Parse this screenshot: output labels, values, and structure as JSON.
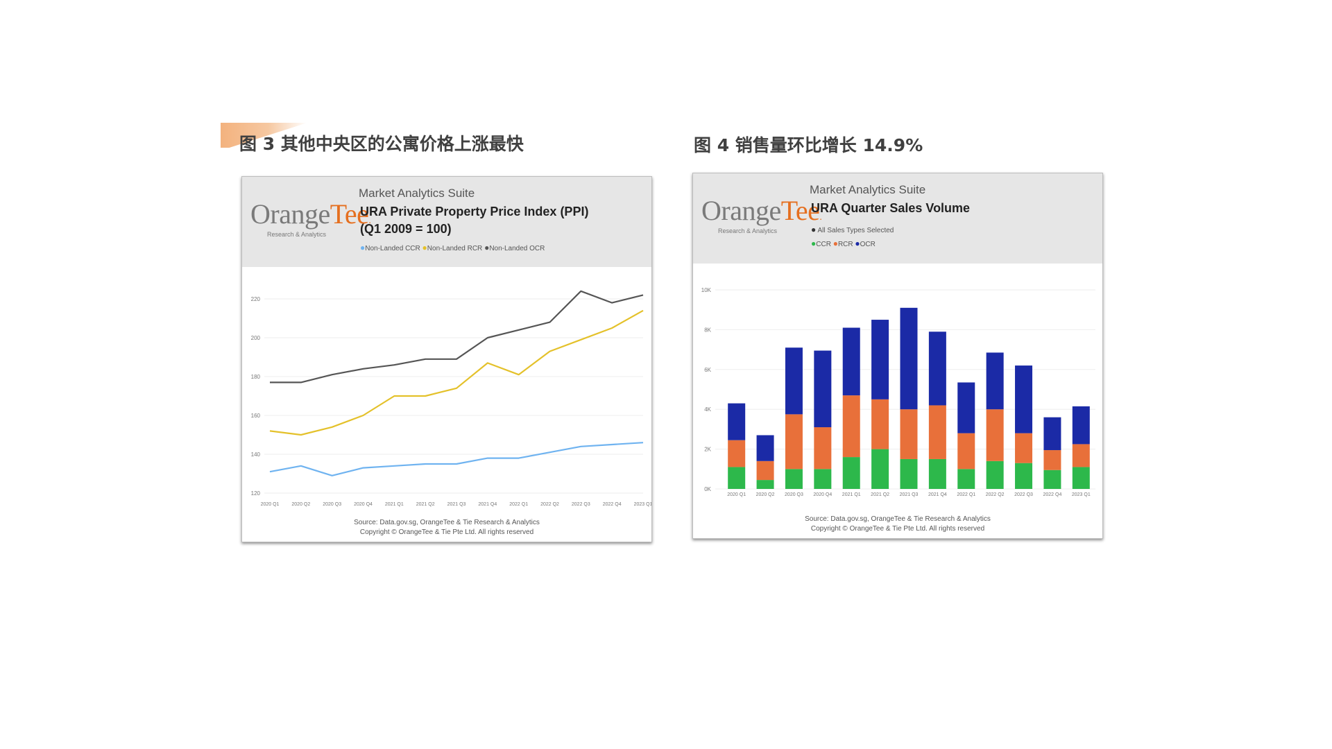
{
  "figure3": {
    "title": "图 3 其他中央区的公寓价格上涨最快",
    "suite": "Market Analytics Suite",
    "brand": {
      "orange": "Orange",
      "tee": "Tee",
      "tagline": "Research & Analytics"
    },
    "chart_title_line1": "URA Private Property Price Index (PPI)",
    "chart_title_line2": "(Q1 2009 = 100)",
    "legend": [
      {
        "label": "Non-Landed CCR",
        "color": "#6fb3f0"
      },
      {
        "label": "Non-Landed RCR",
        "color": "#e4c12a"
      },
      {
        "label": "Non-Landed OCR",
        "color": "#555555"
      }
    ],
    "source_line1": "Source: Data.gov.sg, OrangeTee & Tie Research & Analytics",
    "source_line2": "Copyright © OrangeTee & Tie Pte Ltd. All rights reserved"
  },
  "figure4": {
    "title": "图 4 销售量环比增长 14.9%",
    "suite": "Market Analytics Suite",
    "brand": {
      "orange": "Orange",
      "tee": "Tee",
      "tagline": "Research & Analytics"
    },
    "chart_title": "URA Quarter Sales Volume",
    "filter_text": "All Sales Types Selected",
    "legend": [
      {
        "label": "CCR",
        "color": "#2db84b"
      },
      {
        "label": "RCR",
        "color": "#e8703a"
      },
      {
        "label": "OCR",
        "color": "#1b2aa6"
      }
    ],
    "source_line1": "Source: Data.gov.sg, OrangeTee & Tie Research & Analytics",
    "source_line2": "Copyright © OrangeTee & Tie Pte Ltd. All rights reserved"
  },
  "chart_data": [
    {
      "type": "line",
      "title": "URA Private Property Price Index (PPI) (Q1 2009 = 100)",
      "categories": [
        "2020 Q1",
        "2020 Q2",
        "2020 Q3",
        "2020 Q4",
        "2021 Q1",
        "2021 Q2",
        "2021 Q3",
        "2021 Q4",
        "2022 Q1",
        "2022 Q2",
        "2022 Q3",
        "2022 Q4",
        "2023 Q1"
      ],
      "y_ticks": [
        120,
        140,
        160,
        180,
        200,
        220
      ],
      "ylim": [
        120,
        230
      ],
      "grid": true,
      "legend_position": "top",
      "series": [
        {
          "name": "Non-Landed OCR",
          "color": "#555555",
          "values": [
            177,
            177,
            181,
            184,
            186,
            189,
            189,
            200,
            204,
            208,
            224,
            218,
            222
          ]
        },
        {
          "name": "Non-Landed RCR",
          "color": "#e4c12a",
          "values": [
            152,
            150,
            154,
            160,
            170,
            170,
            174,
            187,
            181,
            193,
            199,
            205,
            214
          ]
        },
        {
          "name": "Non-Landed CCR",
          "color": "#6fb3f0",
          "values": [
            131,
            134,
            129,
            133,
            134,
            135,
            135,
            138,
            138,
            141,
            144,
            145,
            146
          ]
        }
      ]
    },
    {
      "type": "bar",
      "stacked": true,
      "title": "URA Quarter Sales Volume",
      "categories": [
        "2020 Q1",
        "2020 Q2",
        "2020 Q3",
        "2020 Q4",
        "2021 Q1",
        "2021 Q2",
        "2021 Q3",
        "2021 Q4",
        "2022 Q1",
        "2022 Q2",
        "2022 Q3",
        "2022 Q4",
        "2023 Q1"
      ],
      "y_ticks": [
        "0K",
        "2K",
        "4K",
        "6K",
        "8K",
        "10K"
      ],
      "ylim": [
        0,
        10000
      ],
      "grid": true,
      "legend_position": "top",
      "series": [
        {
          "name": "CCR",
          "color": "#2db84b",
          "values": [
            1100,
            450,
            1000,
            1000,
            1600,
            2000,
            1500,
            1500,
            1000,
            1400,
            1300,
            950,
            1100
          ]
        },
        {
          "name": "RCR",
          "color": "#e8703a",
          "values": [
            1350,
            950,
            2750,
            2100,
            3100,
            2500,
            2500,
            2700,
            1800,
            2600,
            1500,
            1000,
            1150
          ]
        },
        {
          "name": "OCR",
          "color": "#1b2aa6",
          "values": [
            1850,
            1300,
            3350,
            3850,
            3400,
            4000,
            5100,
            3700,
            2550,
            2850,
            3400,
            1650,
            1900
          ]
        }
      ]
    }
  ]
}
